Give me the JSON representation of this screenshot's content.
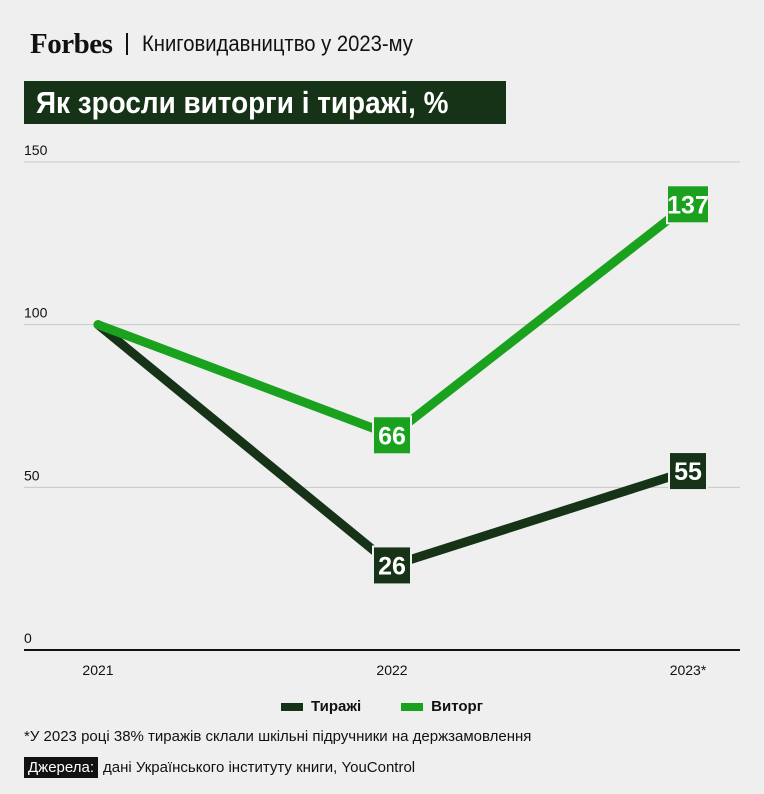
{
  "header": {
    "brand": "Forbes",
    "subtitle": "Книговидавництво у 2023-му",
    "title": "Як зросли виторги і тиражі, %"
  },
  "colors": {
    "background": "#efefef",
    "dark_green": "#163318",
    "bright_green": "#1aa21f",
    "grid": "#c8c8c8",
    "axis": "#111111"
  },
  "chart_data": {
    "type": "line",
    "categories": [
      "2021",
      "2022",
      "2023*"
    ],
    "series": [
      {
        "name": "Тиражі",
        "values": [
          100,
          26,
          55
        ],
        "labels": [
          "",
          "26",
          "55"
        ],
        "color": "#163318"
      },
      {
        "name": "Виторг",
        "values": [
          100,
          66,
          137
        ],
        "labels": [
          "",
          "66",
          "137"
        ],
        "color": "#1aa21f"
      }
    ],
    "yticks": [
      "150",
      "100",
      "50",
      "0"
    ],
    "ylim": [
      0,
      150
    ],
    "grid": true,
    "legend": "bottom-center"
  },
  "footnote": "*У 2023 році 38% тиражів склали шкільні підручники на держзамовлення",
  "sources": {
    "label": "Джерела:",
    "text": "дані Українського інституту книги, YouControl"
  }
}
